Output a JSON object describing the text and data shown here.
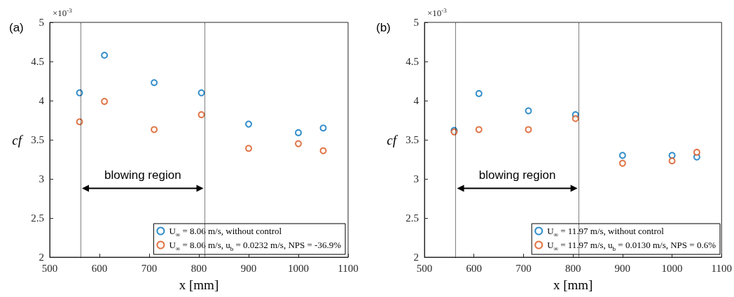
{
  "chart_data": [
    {
      "type": "scatter",
      "title": "(a)",
      "xlabel": "x [mm]",
      "ylabel": "cf",
      "x": [
        560,
        610,
        710,
        805,
        900,
        1000,
        1050
      ],
      "xlim": [
        500,
        1100
      ],
      "xticks": [
        500,
        600,
        700,
        800,
        900,
        1000,
        1100
      ],
      "ylim": [
        2,
        5
      ],
      "yticks": [
        2,
        2.5,
        3,
        3.5,
        4,
        4.5,
        5
      ],
      "marker": "circle",
      "legend": "bottom right",
      "series": [
        {
          "name": "U$_{∞}$ = 8.06 m/s, without control",
          "color": "#0072bd",
          "values": [
            4.1,
            4.58,
            4.23,
            4.1,
            3.7,
            3.59,
            3.65
          ]
        },
        {
          "name": "U$_{∞}$ = 8.06 m/s, u$_{b}$ = 0.0232 m/s, NPS = -36.9%",
          "color": "#d95319",
          "values": [
            3.73,
            3.99,
            3.63,
            3.82,
            3.39,
            3.45,
            3.36
          ]
        }
      ],
      "ref_lines": [
        {
          "axis": "x",
          "value": 562,
          "color": "#000000",
          "line_style": "dotted"
        },
        {
          "axis": "x",
          "value": 812,
          "color": "#000000",
          "line_style": "dotted"
        }
      ],
      "annotations": [
        "×10$^{-3}$",
        "blowing region"
      ]
    },
    {
      "type": "scatter",
      "title": "(b)",
      "xlabel": "x [mm]",
      "ylabel": "cf",
      "x": [
        560,
        610,
        710,
        805,
        900,
        1000,
        1050
      ],
      "xlim": [
        500,
        1100
      ],
      "xticks": [
        500,
        600,
        700,
        800,
        900,
        1000,
        1100
      ],
      "ylim": [
        2,
        5
      ],
      "yticks": [
        2,
        2.5,
        3,
        3.5,
        4,
        4.5,
        5
      ],
      "marker": "circle",
      "legend": "bottom right",
      "series": [
        {
          "name": "U$_{∞}$ = 11.97 m/s, without control",
          "color": "#0072bd",
          "values": [
            3.62,
            4.09,
            3.87,
            3.82,
            3.3,
            3.3,
            3.28
          ]
        },
        {
          "name": "U$_{∞}$ = 11.97 m/s, u$_{b}$ = 0.0130 m/s, NPS = 0.6%",
          "color": "#d95319",
          "values": [
            3.6,
            3.63,
            3.63,
            3.77,
            3.2,
            3.23,
            3.34
          ]
        }
      ],
      "ref_lines": [
        {
          "axis": "x",
          "value": 563,
          "color": "#000000",
          "line_style": "dotted"
        },
        {
          "axis": "x",
          "value": 812,
          "color": "#000000",
          "line_style": "dotted"
        }
      ],
      "annotations": [
        "×10$^{-3}$",
        "blowing region"
      ]
    }
  ]
}
